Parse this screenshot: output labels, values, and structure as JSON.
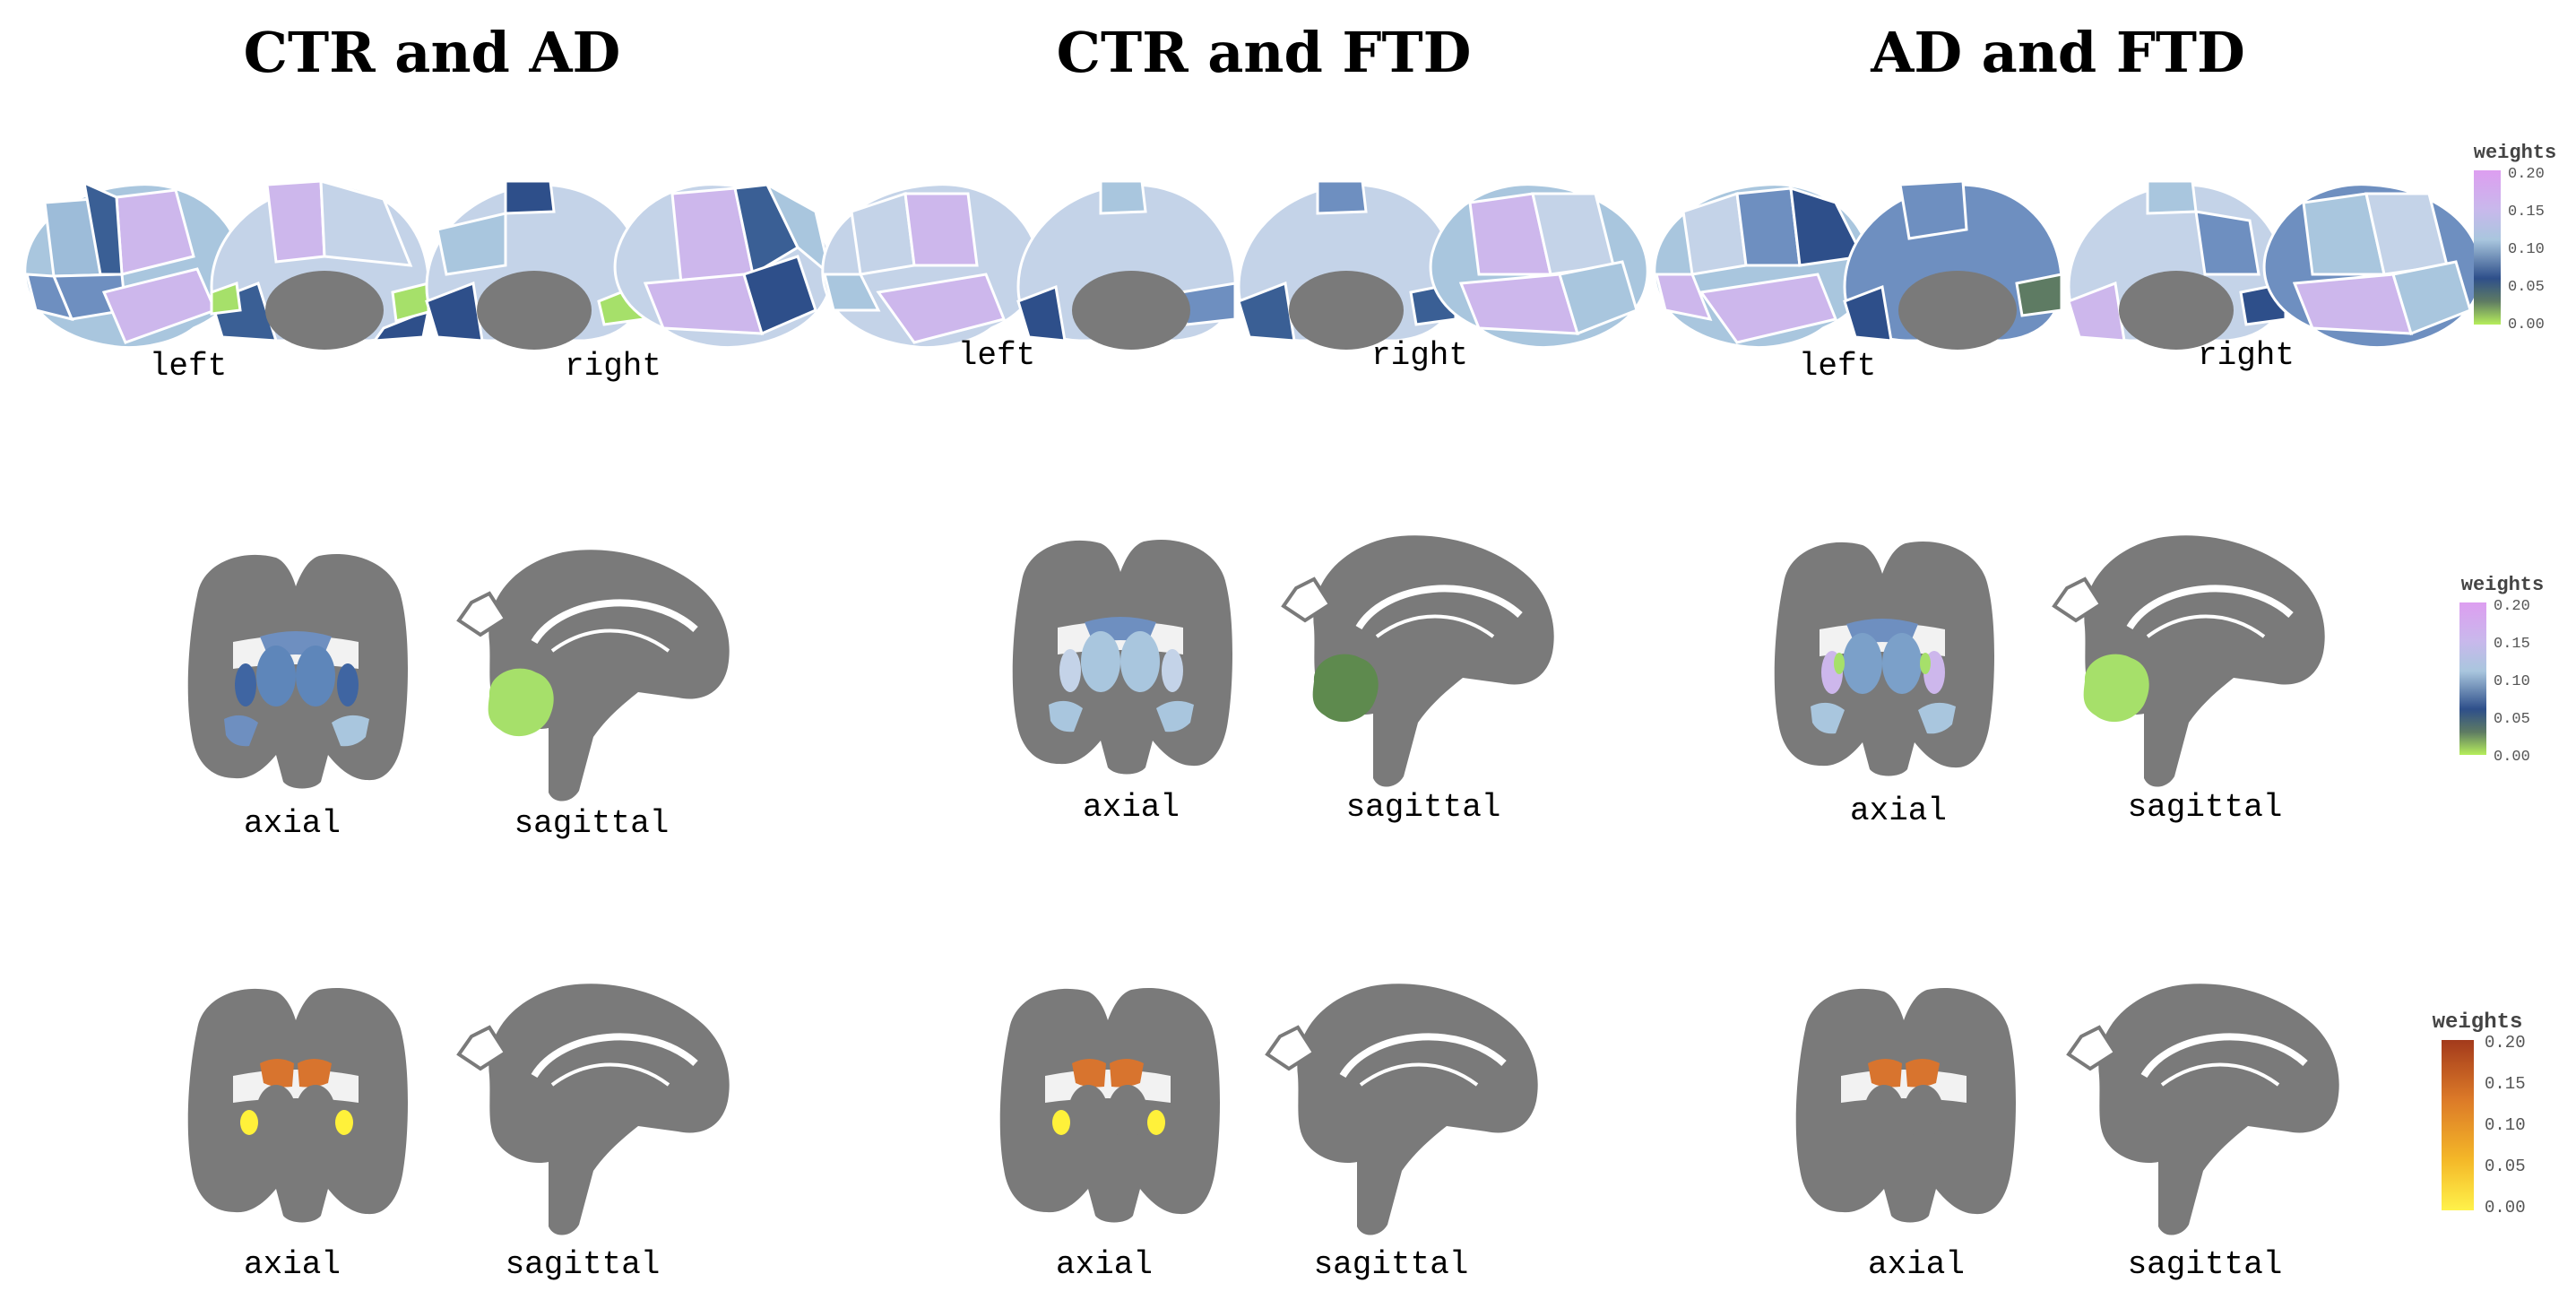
{
  "titles": [
    "CTR and AD",
    "CTR and FTD",
    "AD and FTD"
  ],
  "hemi_labels": {
    "left": "left",
    "right": "right"
  },
  "view_labels": {
    "axial": "axial",
    "sagittal": "sagittal"
  },
  "colorbars": [
    {
      "title": "weights",
      "ticks": [
        "0.20",
        "0.15",
        "0.10",
        "0.05",
        "0.00"
      ],
      "colormap": "cool-purple"
    },
    {
      "title": "weights",
      "ticks": [
        "0.20",
        "0.15",
        "0.10",
        "0.05",
        "0.00"
      ],
      "colormap": "cool-purple"
    },
    {
      "title": "weights",
      "ticks": [
        "0.20",
        "0.15",
        "0.10",
        "0.05",
        "0.00"
      ],
      "colormap": "heat-orange"
    }
  ],
  "colors": {
    "brain_gray": "#7a7a7a",
    "light_blue": "#a9c6de",
    "pale_blue": "#c4d3e8",
    "mid_blue": "#6e8fc0",
    "dark_blue": "#2e4f8a",
    "lavender": "#cdb7ec",
    "lime": "#a6e06a",
    "dark_green": "#5e7b63",
    "orange": "#d8742e",
    "yellow": "#fff13a"
  }
}
